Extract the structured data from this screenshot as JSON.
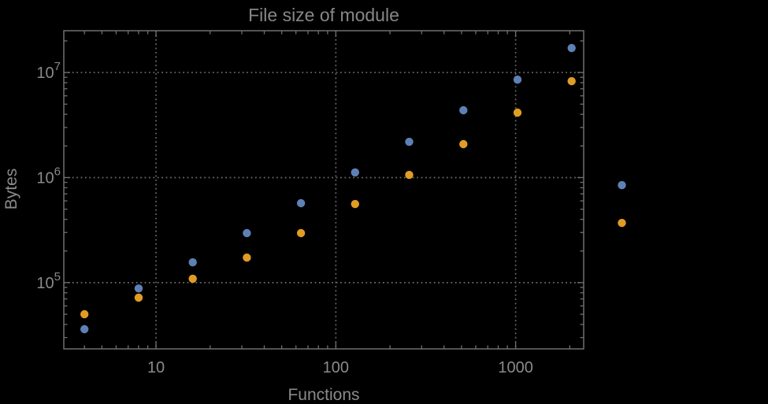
{
  "page": {
    "background": "#000000"
  },
  "chart_data": {
    "type": "scatter",
    "title": "File size of module",
    "xlabel": "Functions",
    "ylabel": "Bytes",
    "x_scale": "log",
    "y_scale": "log",
    "xlim": [
      3.07,
      2390
    ],
    "ylim": [
      23400,
      25000000
    ],
    "grid": true,
    "legend": "none",
    "x_ticks": [
      {
        "value": 10,
        "label": "10"
      },
      {
        "value": 100,
        "label": "100"
      },
      {
        "value": 1000,
        "label": "1000"
      }
    ],
    "y_ticks": [
      {
        "value": 100000,
        "mantissa": "10",
        "exponent": "5"
      },
      {
        "value": 1000000,
        "mantissa": "10",
        "exponent": "6"
      },
      {
        "value": 10000000,
        "mantissa": "10",
        "exponent": "7"
      }
    ],
    "series": [
      {
        "name": "blue-series",
        "color": "#5e81b5",
        "points": [
          [
            4,
            36000
          ],
          [
            8,
            88000
          ],
          [
            16,
            156000
          ],
          [
            32,
            296000
          ],
          [
            64,
            570000
          ],
          [
            128,
            1120000
          ],
          [
            256,
            2190000
          ],
          [
            512,
            4370000
          ],
          [
            1024,
            8560000
          ],
          [
            2048,
            17100000
          ],
          [
            3900,
            847000
          ]
        ]
      },
      {
        "name": "orange-series",
        "color": "#e19c24",
        "points": [
          [
            4,
            50000
          ],
          [
            8,
            72000
          ],
          [
            16,
            109000
          ],
          [
            32,
            173000
          ],
          [
            64,
            296000
          ],
          [
            128,
            560000
          ],
          [
            256,
            1060000
          ],
          [
            512,
            2080000
          ],
          [
            1024,
            4150000
          ],
          [
            2048,
            8270000
          ],
          [
            3900,
            370000
          ]
        ]
      }
    ],
    "style": {
      "frame_color": "#6f6f6f",
      "grid_color": "#6a6a6a",
      "text_color": "#8a8a8a",
      "point_radius": 5.2
    }
  }
}
